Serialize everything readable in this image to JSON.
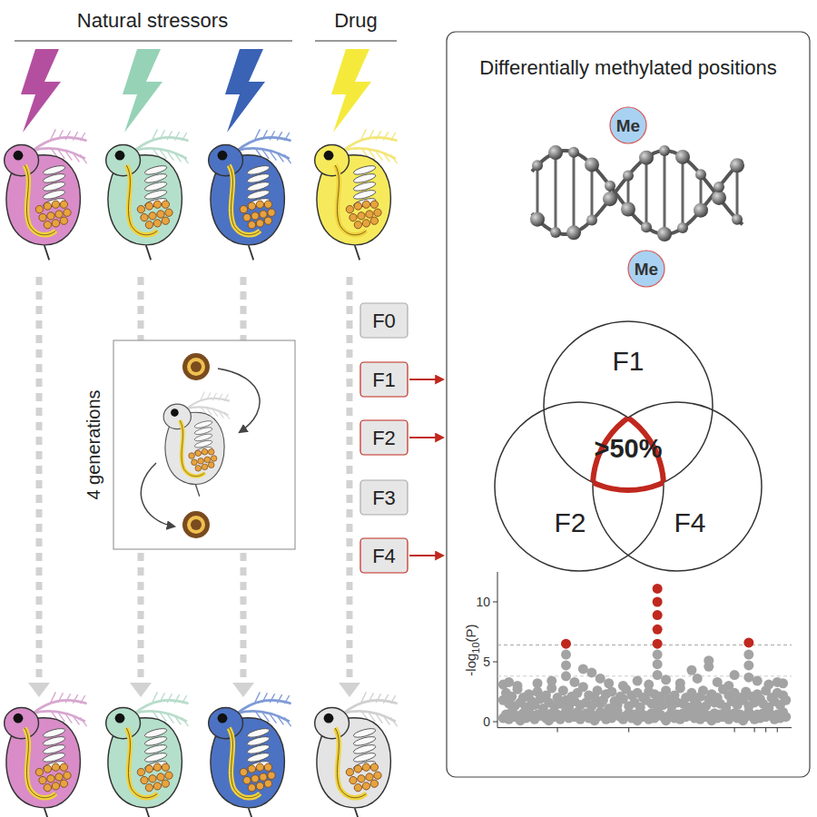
{
  "header": {
    "left": "Natural stressors",
    "right": "Drug"
  },
  "cycle_label": "4 generations",
  "generations": [
    {
      "label": "F0",
      "sampled": false
    },
    {
      "label": "F1",
      "sampled": true
    },
    {
      "label": "F2",
      "sampled": true
    },
    {
      "label": "F3",
      "sampled": false
    },
    {
      "label": "F4",
      "sampled": true
    }
  ],
  "panel": {
    "title": "Differentially methylated positions",
    "methyl_marks": [
      "Me",
      "Me"
    ]
  },
  "venn": {
    "sets": [
      "F1",
      "F2",
      "F4"
    ],
    "overlap_label": ">50%"
  },
  "chart_data": {
    "type": "scatter",
    "y_label": "-log10(P)",
    "xlim": [
      -2,
      101
    ],
    "ylim": [
      -0.5,
      12.5
    ],
    "xticks": [
      19,
      44,
      81,
      88,
      92,
      96
    ],
    "yticks": [
      0,
      5,
      10
    ],
    "tick_labels": "y",
    "thresholds": [
      6.4,
      3.8
    ],
    "x": [
      0,
      1,
      2,
      3,
      4,
      5,
      6,
      7,
      8,
      9,
      10,
      11,
      12,
      13,
      14,
      15,
      16,
      17,
      18,
      19,
      20,
      21,
      22,
      23,
      24,
      25,
      26,
      27,
      28,
      29,
      30,
      31,
      32,
      33,
      34,
      35,
      36,
      37,
      38,
      39,
      40,
      41,
      42,
      43,
      44,
      45,
      46,
      47,
      48,
      49,
      50,
      51,
      52,
      53,
      54,
      55,
      56,
      57,
      58,
      59,
      60,
      61,
      62,
      63,
      64,
      65,
      66,
      67,
      68,
      69,
      70,
      71,
      72,
      73,
      74,
      75,
      76,
      77,
      78,
      79,
      80,
      81,
      82,
      83,
      84,
      85,
      86,
      87,
      88,
      89,
      90,
      91,
      92,
      93,
      94,
      95,
      96,
      97,
      98,
      99,
      0,
      1,
      2,
      3,
      4,
      5,
      6,
      7,
      8,
      9,
      10,
      11,
      12,
      13,
      14,
      15,
      16,
      17,
      18,
      19,
      20,
      21,
      22,
      23,
      24,
      25,
      26,
      27,
      28,
      29,
      30,
      31,
      32,
      33,
      34,
      35,
      36,
      37,
      38,
      39,
      40,
      41,
      42,
      43,
      44,
      45,
      46,
      47,
      48,
      49,
      50,
      51,
      52,
      53,
      54,
      55,
      56,
      57,
      58,
      59,
      60,
      61,
      62,
      63,
      64,
      65,
      66,
      67,
      68,
      69,
      70,
      71,
      72,
      73,
      74,
      75,
      76,
      77,
      78,
      79,
      80,
      81,
      82,
      83,
      84,
      85,
      86,
      87,
      88,
      89,
      90,
      91,
      92,
      93,
      94,
      95,
      96,
      97,
      98,
      99,
      0,
      2,
      5,
      12,
      17,
      22,
      22,
      22,
      22,
      25,
      28,
      31,
      34,
      37,
      42,
      47,
      51,
      54,
      54,
      54,
      54,
      54,
      54,
      54,
      54,
      57,
      62,
      66,
      68,
      72,
      72,
      75,
      79,
      81,
      86,
      86,
      86,
      86,
      89,
      93,
      96,
      98
    ],
    "values": [
      0.3,
      0.6,
      0.2,
      0.8,
      0.4,
      0.5,
      0.1,
      0.7,
      0.3,
      0.9,
      0.4,
      0.2,
      0.6,
      0.5,
      0.8,
      0.3,
      0.1,
      0.7,
      0.4,
      0.6,
      0.2,
      0.5,
      0.9,
      0.3,
      0.6,
      0.4,
      0.8,
      0.2,
      0.5,
      0.7,
      0.3,
      0.6,
      0.1,
      0.4,
      0.8,
      0.5,
      0.2,
      0.7,
      0.3,
      0.6,
      0.9,
      0.4,
      0.2,
      0.5,
      0.7,
      0.3,
      0.6,
      0.1,
      0.8,
      0.4,
      0.5,
      0.2,
      0.7,
      0.3,
      0.9,
      0.6,
      0.4,
      0.1,
      0.5,
      0.8,
      0.3,
      0.6,
      0.2,
      0.7,
      0.4,
      0.5,
      0.9,
      0.3,
      0.6,
      0.2,
      0.8,
      0.4,
      0.5,
      0.1,
      0.7,
      0.3,
      0.6,
      0.4,
      0.9,
      0.2,
      0.5,
      0.7,
      0.3,
      0.6,
      0.1,
      0.4,
      0.8,
      0.5,
      0.2,
      0.6,
      0.3,
      0.7,
      0.4,
      0.9,
      0.5,
      0.2,
      0.6,
      0.3,
      0.8,
      0.4,
      1.8,
      2.4,
      1.5,
      2.1,
      1.3,
      2.7,
      1.6,
      2.0,
      1.2,
      2.3,
      1.7,
      1.4,
      2.5,
      1.9,
      1.1,
      2.2,
      1.6,
      2.8,
      1.3,
      2.0,
      1.5,
      2.6,
      1.8,
      1.2,
      2.1,
      1.7,
      2.4,
      1.4,
      2.9,
      1.6,
      2.2,
      1.3,
      2.0,
      2.6,
      1.5,
      1.8,
      2.3,
      1.1,
      2.5,
      1.7,
      1.4,
      2.1,
      1.9,
      2.7,
      1.3,
      2.2,
      1.6,
      2.4,
      1.2,
      2.0,
      1.8,
      2.5,
      1.5,
      2.3,
      1.7,
      2.1,
      1.4,
      2.6,
      1.9,
      1.3,
      2.2,
      1.6,
      2.8,
      1.5,
      2.0,
      1.2,
      2.4,
      1.8,
      1.4,
      2.1,
      2.6,
      1.3,
      1.9,
      2.3,
      1.6,
      2.0,
      1.5,
      2.7,
      1.2,
      2.2,
      1.7,
      2.4,
      1.4,
      2.0,
      1.8,
      2.5,
      1.3,
      2.1,
      1.6,
      2.3,
      1.9,
      1.5,
      2.6,
      1.2,
      2.0,
      1.7,
      2.4,
      1.4,
      2.2,
      1.8,
      3.1,
      3.3,
      3.0,
      3.2,
      3.4,
      6.5,
      5.6,
      4.7,
      3.8,
      3.3,
      4.4,
      4.1,
      3.6,
      3.2,
      3.0,
      3.4,
      3.1,
      11.1,
      10.0,
      8.9,
      7.7,
      6.5,
      5.6,
      4.8,
      3.9,
      3.5,
      3.2,
      4.3,
      3.6,
      4.6,
      5.1,
      3.3,
      3.0,
      3.9,
      6.6,
      5.6,
      4.7,
      3.7,
      3.4,
      3.1,
      3.3,
      3.2
    ]
  }
}
